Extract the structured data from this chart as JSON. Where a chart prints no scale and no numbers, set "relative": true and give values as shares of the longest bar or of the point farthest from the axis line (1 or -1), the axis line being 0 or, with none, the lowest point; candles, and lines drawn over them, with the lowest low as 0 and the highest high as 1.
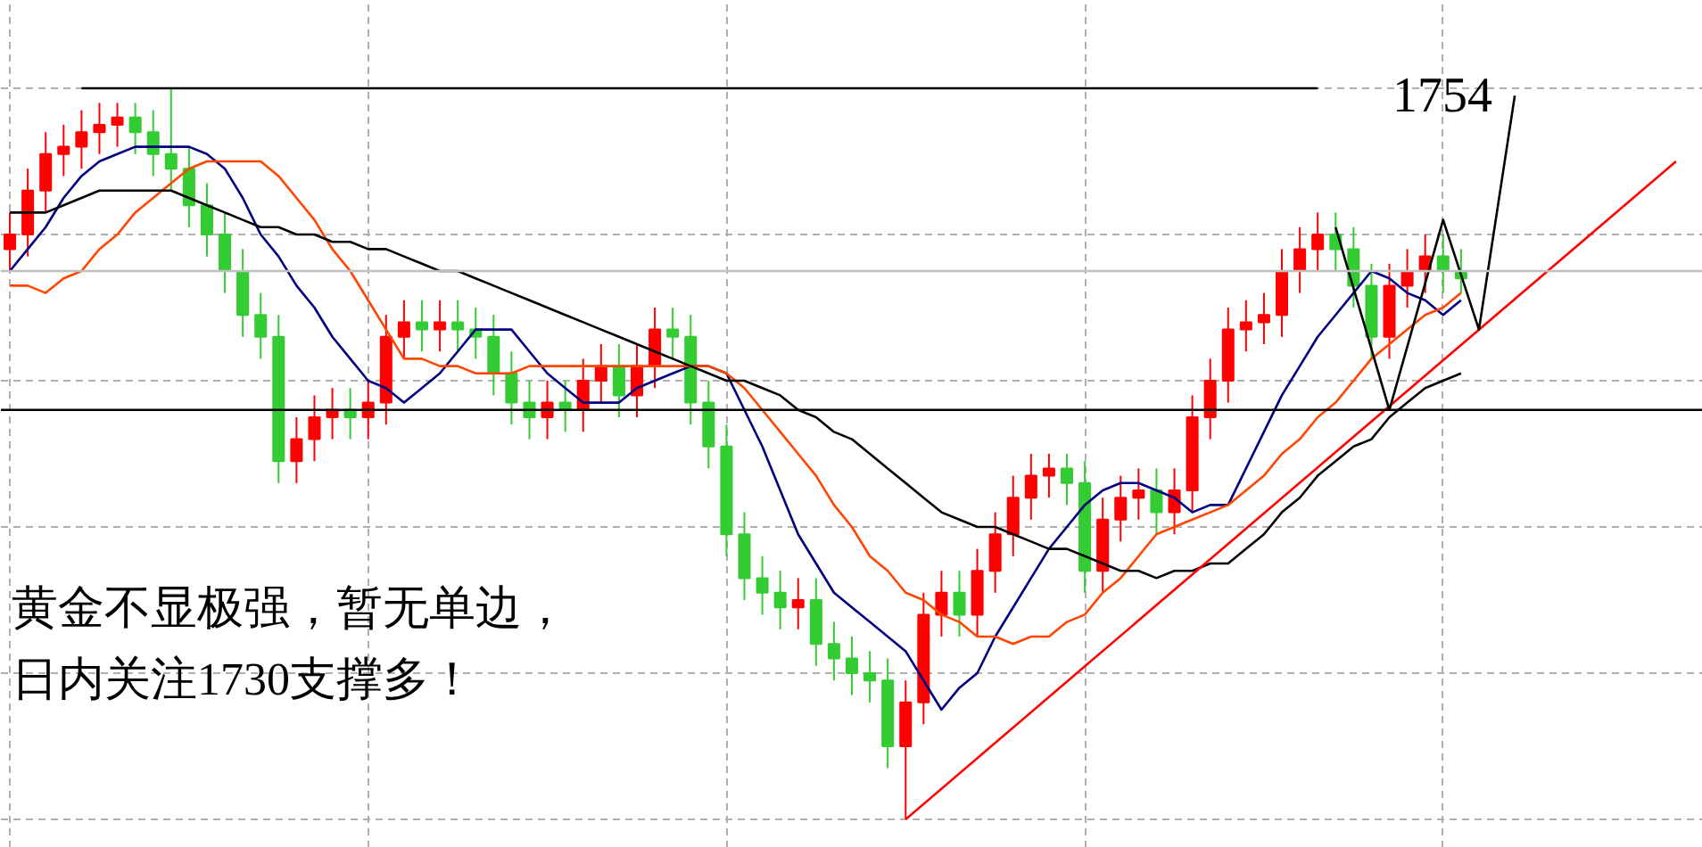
{
  "chart_data": [
    {
      "type": "candlestick",
      "relative": true,
      "grid": true,
      "categories": [
        null,
        null,
        null,
        null,
        null,
        null,
        null,
        null,
        null,
        null,
        null,
        null,
        null,
        null,
        null,
        null,
        null,
        null,
        null,
        null,
        null,
        null,
        null,
        null,
        null,
        null,
        null,
        null,
        null,
        null,
        null,
        null,
        null,
        null,
        null,
        null,
        null,
        null,
        null,
        null,
        null,
        null,
        null,
        null,
        null,
        null,
        null,
        null,
        null,
        null,
        null,
        null,
        null,
        null,
        null,
        null,
        null,
        null,
        null,
        null,
        null,
        null,
        null,
        null,
        null,
        null,
        null,
        null,
        null,
        null,
        null,
        null,
        null,
        null,
        null,
        null,
        null,
        null,
        null,
        null,
        null,
        null
      ],
      "ohlc": [
        [
          0.78,
          0.83,
          0.75,
          0.8
        ],
        [
          0.8,
          0.89,
          0.77,
          0.86
        ],
        [
          0.86,
          0.94,
          0.83,
          0.91
        ],
        [
          0.91,
          0.95,
          0.88,
          0.92
        ],
        [
          0.92,
          0.97,
          0.89,
          0.94
        ],
        [
          0.94,
          0.98,
          0.91,
          0.95
        ],
        [
          0.95,
          0.98,
          0.92,
          0.96
        ],
        [
          0.96,
          0.98,
          0.91,
          0.94
        ],
        [
          0.94,
          0.97,
          0.88,
          0.91
        ],
        [
          0.91,
          1.0,
          0.86,
          0.89
        ],
        [
          0.89,
          0.92,
          0.81,
          0.84
        ],
        [
          0.84,
          0.87,
          0.77,
          0.8
        ],
        [
          0.8,
          0.83,
          0.72,
          0.75
        ],
        [
          0.75,
          0.78,
          0.66,
          0.69
        ],
        [
          0.69,
          0.72,
          0.63,
          0.66
        ],
        [
          0.66,
          0.69,
          0.46,
          0.49
        ],
        [
          0.49,
          0.55,
          0.46,
          0.52
        ],
        [
          0.52,
          0.58,
          0.49,
          0.55
        ],
        [
          0.55,
          0.59,
          0.52,
          0.56
        ],
        [
          0.56,
          0.59,
          0.52,
          0.55
        ],
        [
          0.55,
          0.6,
          0.52,
          0.57
        ],
        [
          0.57,
          0.69,
          0.54,
          0.66
        ],
        [
          0.66,
          0.71,
          0.63,
          0.68
        ],
        [
          0.68,
          0.71,
          0.64,
          0.67
        ],
        [
          0.67,
          0.71,
          0.64,
          0.68
        ],
        [
          0.68,
          0.71,
          0.64,
          0.67
        ],
        [
          0.67,
          0.7,
          0.63,
          0.66
        ],
        [
          0.66,
          0.69,
          0.58,
          0.61
        ],
        [
          0.61,
          0.64,
          0.54,
          0.57
        ],
        [
          0.57,
          0.6,
          0.52,
          0.55
        ],
        [
          0.55,
          0.6,
          0.52,
          0.57
        ],
        [
          0.57,
          0.6,
          0.53,
          0.56
        ],
        [
          0.56,
          0.63,
          0.53,
          0.6
        ],
        [
          0.6,
          0.65,
          0.57,
          0.62
        ],
        [
          0.62,
          0.65,
          0.55,
          0.58
        ],
        [
          0.58,
          0.65,
          0.55,
          0.62
        ],
        [
          0.62,
          0.7,
          0.59,
          0.67
        ],
        [
          0.67,
          0.7,
          0.63,
          0.66
        ],
        [
          0.66,
          0.69,
          0.54,
          0.57
        ],
        [
          0.57,
          0.6,
          0.48,
          0.51
        ],
        [
          0.51,
          0.54,
          0.36,
          0.39
        ],
        [
          0.39,
          0.42,
          0.3,
          0.33
        ],
        [
          0.33,
          0.36,
          0.28,
          0.31
        ],
        [
          0.31,
          0.34,
          0.26,
          0.29
        ],
        [
          0.29,
          0.33,
          0.26,
          0.3
        ],
        [
          0.3,
          0.33,
          0.21,
          0.24
        ],
        [
          0.24,
          0.27,
          0.19,
          0.22
        ],
        [
          0.22,
          0.25,
          0.17,
          0.2
        ],
        [
          0.2,
          0.23,
          0.16,
          0.19
        ],
        [
          0.19,
          0.22,
          0.07,
          0.1
        ],
        [
          0.1,
          0.19,
          0.0,
          0.16
        ],
        [
          0.16,
          0.31,
          0.13,
          0.28
        ],
        [
          0.28,
          0.34,
          0.25,
          0.31
        ],
        [
          0.31,
          0.34,
          0.25,
          0.28
        ],
        [
          0.28,
          0.37,
          0.25,
          0.34
        ],
        [
          0.34,
          0.42,
          0.31,
          0.39
        ],
        [
          0.39,
          0.47,
          0.36,
          0.44
        ],
        [
          0.44,
          0.5,
          0.41,
          0.47
        ],
        [
          0.47,
          0.5,
          0.44,
          0.48
        ],
        [
          0.48,
          0.5,
          0.43,
          0.46
        ],
        [
          0.46,
          0.49,
          0.31,
          0.34
        ],
        [
          0.34,
          0.44,
          0.31,
          0.41
        ],
        [
          0.41,
          0.47,
          0.38,
          0.44
        ],
        [
          0.44,
          0.48,
          0.41,
          0.45
        ],
        [
          0.45,
          0.48,
          0.39,
          0.42
        ],
        [
          0.42,
          0.48,
          0.39,
          0.45
        ],
        [
          0.45,
          0.58,
          0.42,
          0.55
        ],
        [
          0.55,
          0.63,
          0.52,
          0.6
        ],
        [
          0.6,
          0.7,
          0.57,
          0.67
        ],
        [
          0.67,
          0.71,
          0.64,
          0.68
        ],
        [
          0.68,
          0.72,
          0.65,
          0.69
        ],
        [
          0.69,
          0.78,
          0.66,
          0.75
        ],
        [
          0.75,
          0.81,
          0.72,
          0.78
        ],
        [
          0.78,
          0.83,
          0.75,
          0.8
        ],
        [
          0.8,
          0.83,
          0.75,
          0.78
        ],
        [
          0.78,
          0.81,
          0.7,
          0.73
        ],
        [
          0.73,
          0.76,
          0.63,
          0.66
        ],
        [
          0.66,
          0.76,
          0.63,
          0.73
        ],
        [
          0.73,
          0.78,
          0.7,
          0.75
        ],
        [
          0.75,
          0.8,
          0.72,
          0.77
        ],
        [
          0.77,
          0.8,
          0.72,
          0.75
        ],
        [
          0.75,
          0.78,
          0.72,
          0.74
        ]
      ],
      "colors": [
        "#ff0000",
        "#ff0000",
        "#ff0000",
        "#ff0000",
        "#ff0000",
        "#ff0000",
        "#ff0000",
        "#33cc33",
        "#33cc33",
        "#33cc33",
        "#33cc33",
        "#33cc33",
        "#33cc33",
        "#33cc33",
        "#33cc33",
        "#33cc33",
        "#ff0000",
        "#ff0000",
        "#ff0000",
        "#33cc33",
        "#ff0000",
        "#ff0000",
        "#ff0000",
        "#33cc33",
        "#ff0000",
        "#33cc33",
        "#33cc33",
        "#33cc33",
        "#33cc33",
        "#33cc33",
        "#ff0000",
        "#33cc33",
        "#ff0000",
        "#ff0000",
        "#33cc33",
        "#ff0000",
        "#ff0000",
        "#33cc33",
        "#33cc33",
        "#33cc33",
        "#33cc33",
        "#33cc33",
        "#33cc33",
        "#33cc33",
        "#ff0000",
        "#33cc33",
        "#33cc33",
        "#33cc33",
        "#33cc33",
        "#33cc33",
        "#ff0000",
        "#ff0000",
        "#ff0000",
        "#33cc33",
        "#ff0000",
        "#ff0000",
        "#ff0000",
        "#ff0000",
        "#ff0000",
        "#33cc33",
        "#33cc33",
        "#ff0000",
        "#ff0000",
        "#ff0000",
        "#33cc33",
        "#ff0000",
        "#ff0000",
        "#ff0000",
        "#ff0000",
        "#ff0000",
        "#ff0000",
        "#ff0000",
        "#ff0000",
        "#ff0000",
        "#33cc33",
        "#33cc33",
        "#33cc33",
        "#ff0000",
        "#ff0000",
        "#ff0000",
        "#33cc33",
        "#33cc33"
      ]
    },
    {
      "type": "line",
      "relative": true,
      "categories": [
        null,
        null,
        null,
        null,
        null,
        null,
        null,
        null,
        null,
        null,
        null,
        null,
        null,
        null,
        null,
        null,
        null,
        null,
        null,
        null,
        null,
        null,
        null,
        null,
        null,
        null,
        null,
        null,
        null,
        null,
        null,
        null,
        null,
        null,
        null,
        null,
        null,
        null,
        null,
        null,
        null,
        null,
        null,
        null,
        null,
        null,
        null,
        null,
        null,
        null,
        null,
        null,
        null,
        null,
        null,
        null,
        null,
        null,
        null,
        null,
        null,
        null,
        null,
        null,
        null,
        null,
        null,
        null,
        null,
        null,
        null,
        null,
        null,
        null,
        null,
        null,
        null,
        null,
        null,
        null,
        null,
        null,
        null,
        null,
        null,
        null,
        null,
        null,
        null,
        null,
        null,
        null,
        null,
        null,
        null
      ],
      "series": [
        {
          "type": "line",
          "color": "#000080",
          "values": [
            0.75,
            0.78,
            0.81,
            0.85,
            0.88,
            0.9,
            0.91,
            0.92,
            0.92,
            0.92,
            0.92,
            0.91,
            0.89,
            0.85,
            0.8,
            0.77,
            0.73,
            0.7,
            0.66,
            0.63,
            0.6,
            0.59,
            0.57,
            0.59,
            0.61,
            0.64,
            0.67,
            0.67,
            0.67,
            0.64,
            0.61,
            0.59,
            0.57,
            0.57,
            0.57,
            0.59,
            0.6,
            0.61,
            0.62,
            0.62,
            0.61,
            0.56,
            0.51,
            0.45,
            0.39,
            0.35,
            0.31,
            0.29,
            0.27,
            0.25,
            0.23,
            0.19,
            0.15,
            0.18,
            0.2,
            0.25,
            0.29,
            0.33,
            0.37,
            0.4,
            0.43,
            0.45,
            0.46,
            0.46,
            0.45,
            0.44,
            0.42,
            0.43,
            0.43,
            0.48,
            0.53,
            0.58,
            0.62,
            0.66,
            0.69,
            0.72,
            0.75,
            0.74,
            0.72,
            0.71,
            0.69,
            0.71,
            null,
            null,
            null,
            null,
            null,
            null,
            null,
            null,
            null,
            null,
            null,
            null,
            null
          ]
        },
        {
          "type": "line",
          "color": "#ff4500",
          "values": [
            0.73,
            0.73,
            0.72,
            0.74,
            0.75,
            0.78,
            0.8,
            0.83,
            0.85,
            0.87,
            0.89,
            0.9,
            0.9,
            0.9,
            0.9,
            0.88,
            0.85,
            0.82,
            0.78,
            0.75,
            0.71,
            0.67,
            0.63,
            0.63,
            0.62,
            0.62,
            0.61,
            0.61,
            0.61,
            0.62,
            0.62,
            0.62,
            0.62,
            0.62,
            0.62,
            0.62,
            0.62,
            0.62,
            0.62,
            0.62,
            0.61,
            0.59,
            0.56,
            0.53,
            0.5,
            0.47,
            0.43,
            0.4,
            0.36,
            0.34,
            0.31,
            0.3,
            0.28,
            0.27,
            0.25,
            0.25,
            0.24,
            0.25,
            0.25,
            0.27,
            0.28,
            0.31,
            0.33,
            0.36,
            0.39,
            0.4,
            0.41,
            0.42,
            0.43,
            0.45,
            0.47,
            0.5,
            0.52,
            0.55,
            0.57,
            0.6,
            0.63,
            0.65,
            0.67,
            0.69,
            0.7,
            0.72,
            null,
            null,
            null,
            null,
            null,
            null,
            null,
            null,
            null,
            null,
            null,
            null,
            null
          ]
        },
        {
          "type": "line",
          "color": "#000000",
          "values": [
            0.83,
            0.83,
            0.83,
            0.84,
            0.85,
            0.86,
            0.86,
            0.86,
            0.86,
            0.86,
            0.85,
            0.84,
            0.83,
            0.82,
            0.81,
            0.81,
            0.8,
            0.8,
            0.79,
            0.79,
            0.78,
            0.78,
            0.77,
            0.76,
            0.75,
            0.75,
            0.74,
            0.73,
            0.72,
            0.71,
            0.7,
            0.69,
            0.68,
            0.67,
            0.66,
            0.65,
            0.64,
            0.63,
            0.62,
            0.61,
            0.6,
            0.6,
            0.59,
            0.58,
            0.56,
            0.55,
            0.53,
            0.52,
            0.5,
            0.48,
            0.46,
            0.44,
            0.42,
            0.41,
            0.4,
            0.4,
            0.39,
            0.38,
            0.37,
            0.37,
            0.36,
            0.35,
            0.34,
            0.34,
            0.33,
            0.34,
            0.34,
            0.35,
            0.35,
            0.37,
            0.39,
            0.42,
            0.44,
            0.47,
            0.49,
            0.51,
            0.52,
            0.55,
            0.57,
            0.59,
            0.6,
            0.61,
            null,
            null,
            null,
            null,
            null,
            null,
            null,
            null,
            null,
            null,
            null,
            null,
            null
          ]
        },
        {
          "type": "line",
          "color": "#ff0000",
          "values": [
            null,
            null,
            null,
            null,
            null,
            null,
            null,
            null,
            null,
            null,
            null,
            null,
            null,
            null,
            null,
            null,
            null,
            null,
            null,
            null,
            null,
            null,
            null,
            null,
            null,
            null,
            null,
            null,
            null,
            null,
            null,
            null,
            null,
            null,
            null,
            null,
            null,
            null,
            null,
            null,
            null,
            null,
            null,
            null,
            null,
            null,
            null,
            null,
            null,
            null,
            0.0,
            null,
            null,
            null,
            null,
            null,
            null,
            null,
            null,
            null,
            null,
            null,
            null,
            null,
            null,
            null,
            null,
            null,
            null,
            null,
            null,
            null,
            null,
            null,
            null,
            null,
            null,
            null,
            null,
            null,
            null,
            null,
            null,
            null,
            null,
            null,
            null,
            null,
            null,
            null,
            null,
            null,
            null,
            0.9,
            null
          ]
        },
        {
          "type": "line",
          "color": "#000000",
          "values": [
            null,
            null,
            null,
            null,
            1.0,
            null,
            null,
            null,
            null,
            null,
            null,
            null,
            null,
            null,
            null,
            null,
            null,
            null,
            null,
            null,
            null,
            null,
            null,
            null,
            null,
            null,
            null,
            null,
            null,
            null,
            null,
            null,
            null,
            null,
            null,
            null,
            null,
            null,
            null,
            null,
            null,
            null,
            null,
            null,
            null,
            null,
            null,
            null,
            null,
            null,
            null,
            null,
            null,
            null,
            null,
            null,
            null,
            null,
            null,
            null,
            null,
            null,
            null,
            null,
            null,
            null,
            null,
            null,
            null,
            null,
            null,
            null,
            null,
            1.0,
            null,
            null,
            null,
            null,
            null,
            null,
            null,
            null,
            null,
            null,
            null,
            null,
            null,
            null,
            null,
            null,
            null,
            null,
            null,
            null,
            null
          ]
        },
        {
          "type": "line",
          "color": "#000000",
          "values": [
            null,
            null,
            null,
            null,
            null,
            null,
            null,
            null,
            null,
            null,
            null,
            null,
            null,
            null,
            null,
            null,
            null,
            null,
            null,
            null,
            null,
            null,
            null,
            null,
            null,
            null,
            null,
            null,
            null,
            null,
            null,
            null,
            null,
            null,
            null,
            null,
            null,
            null,
            null,
            null,
            null,
            null,
            null,
            null,
            null,
            null,
            null,
            null,
            null,
            null,
            null,
            null,
            null,
            null,
            null,
            null,
            null,
            null,
            null,
            null,
            null,
            null,
            null,
            null,
            null,
            null,
            null,
            null,
            null,
            null,
            null,
            null,
            null,
            null,
            0.81,
            null,
            null,
            0.56,
            null,
            null,
            0.82,
            null,
            0.67,
            null,
            0.99,
            null,
            null,
            null,
            null,
            null,
            null,
            null,
            null,
            null,
            null
          ]
        }
      ],
      "ref_lines": [
        {
          "axis": "y",
          "value": 0.56,
          "color": "#000000"
        },
        {
          "axis": "y",
          "value": 0.75,
          "color": "#c0c0c0"
        }
      ],
      "annotations": [
        "1754",
        "黄金不显极强，暂无单边，",
        "日内关注1730支撑多！"
      ]
    }
  ]
}
